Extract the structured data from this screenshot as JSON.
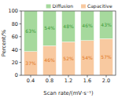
{
  "chart_data": {
    "type": "bar",
    "stacked": true,
    "data_labels": true,
    "y_label": "Percent/%",
    "x_label": "Scan rate/(mV·s⁻¹)",
    "categories": [
      "0.4",
      "0.8",
      "1.2",
      "1.6",
      "2.0"
    ],
    "series": [
      {
        "name": "Capacitive",
        "color": "#f8c9a0",
        "values": [
          37,
          46,
          52,
          54,
          57
        ],
        "value_labels": [
          "37%",
          "46%",
          "52%",
          "54%",
          "57%"
        ]
      },
      {
        "name": "Diffusion",
        "color": "#a6d99d",
        "values": [
          63,
          54,
          48,
          46,
          43
        ],
        "value_labels": [
          "63%",
          "54%",
          "48%",
          "46%",
          "43%"
        ]
      }
    ],
    "ylim": [
      0,
      100
    ],
    "yticks": [
      0,
      20,
      40,
      60,
      80,
      100
    ],
    "legend": "upper right"
  }
}
